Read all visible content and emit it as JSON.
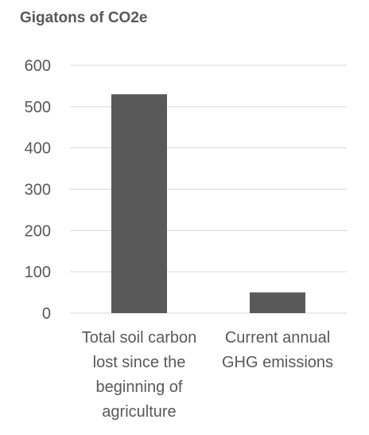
{
  "chart_data": {
    "type": "bar",
    "title": "Gigatons of CO2e",
    "categories": [
      [
        "Total soil carbon",
        "lost since the",
        "beginning of",
        "agriculture"
      ],
      [
        "Current annual",
        "GHG emissions"
      ]
    ],
    "values": [
      530,
      50
    ],
    "ylim": [
      0,
      600
    ],
    "yticks": [
      0,
      100,
      200,
      300,
      400,
      500,
      600
    ],
    "grid": true,
    "legend": "none",
    "colors": {
      "bar": "#595959",
      "grid": "#d9d9d9",
      "text": "#595959"
    }
  }
}
